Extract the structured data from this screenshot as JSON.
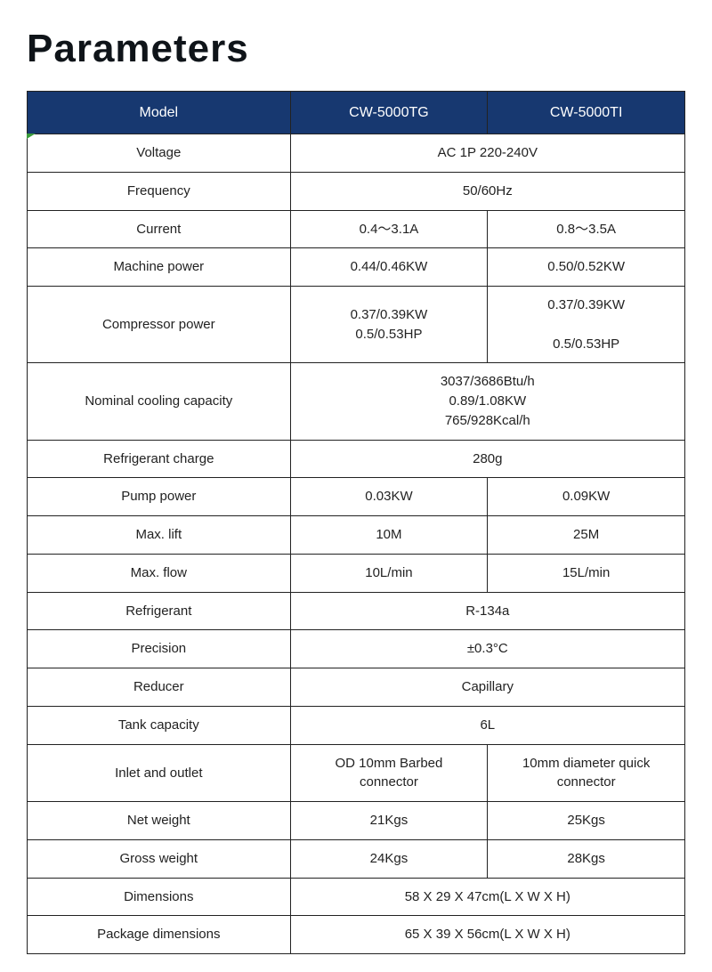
{
  "title": "Parameters",
  "table": {
    "header_bg": "#173870",
    "header_fg": "#ffffff",
    "border_color": "#222222",
    "columns": [
      "Model",
      "CW-5000TG",
      "CW-5000TI"
    ],
    "rows": [
      {
        "label": "Voltage",
        "merged": true,
        "value": "AC 1P 220-240V"
      },
      {
        "label": "Frequency",
        "merged": true,
        "value": "50/60Hz"
      },
      {
        "label": "Current",
        "tg": "0.4～3.1A",
        "ti": "0.8～3.5A"
      },
      {
        "label": "Machine power",
        "tg": "0.44/0.46KW",
        "ti": "0.50/0.52KW"
      },
      {
        "label": "Compressor power",
        "tg_lines": [
          "0.37/0.39KW",
          "0.5/0.53HP"
        ],
        "ti_lines": [
          "0.37/0.39KW",
          "",
          "0.5/0.53HP"
        ]
      },
      {
        "label": "Nominal cooling capacity",
        "merged": true,
        "value_lines": [
          "3037/3686Btu/h",
          "0.89/1.08KW",
          "765/928Kcal/h"
        ]
      },
      {
        "label": "Refrigerant charge",
        "merged": true,
        "value": "280g"
      },
      {
        "label": "Pump power",
        "tg": "0.03KW",
        "ti": "0.09KW"
      },
      {
        "label": "Max. lift",
        "tg": "10M",
        "ti": "25M"
      },
      {
        "label": "Max. flow",
        "tg": "10L/min",
        "ti": "15L/min"
      },
      {
        "label": "Refrigerant",
        "merged": true,
        "value": "R-134a"
      },
      {
        "label": "Precision",
        "merged": true,
        "value": "±0.3°C"
      },
      {
        "label": "Reducer",
        "merged": true,
        "value": "Capillary"
      },
      {
        "label": "Tank capacity",
        "merged": true,
        "value": "6L"
      },
      {
        "label": "Inlet and outlet",
        "tg_lines": [
          "OD 10mm Barbed",
          "connector"
        ],
        "ti_lines": [
          "10mm diameter quick",
          "connector"
        ]
      },
      {
        "label": "Net weight",
        "tg": "21Kgs",
        "ti": "25Kgs"
      },
      {
        "label": "Gross weight",
        "tg": "24Kgs",
        "ti": "28Kgs"
      },
      {
        "label": "Dimensions",
        "merged": true,
        "value": "58 X 29 X 47cm(L X W X H)"
      },
      {
        "label": "Package dimensions",
        "merged": true,
        "value": "65 X 39 X 56cm(L X W X H)"
      }
    ]
  }
}
